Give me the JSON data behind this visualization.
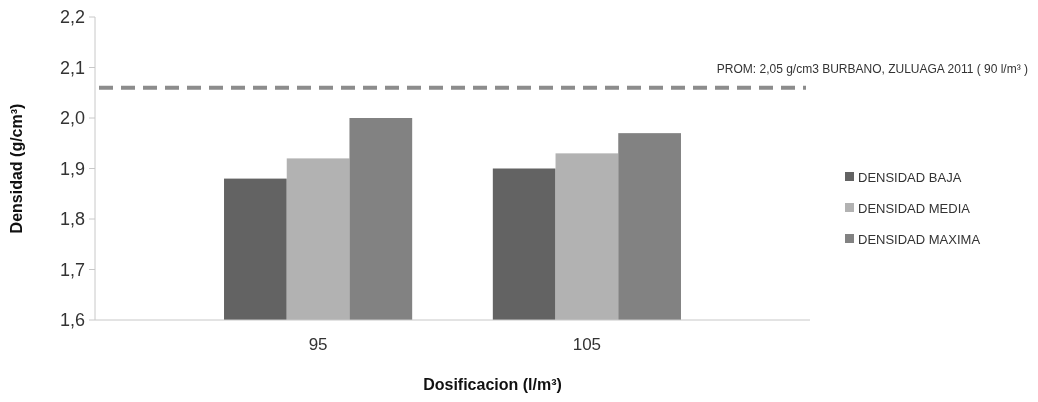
{
  "chart_data": {
    "type": "bar",
    "xlabel": "Dosificacion (l/m³)",
    "ylabel": "Densidad (g/cm³)",
    "categories": [
      "95",
      "105"
    ],
    "series": [
      {
        "name": "DENSIDAD BAJA",
        "color": "#636363",
        "values": [
          1.88,
          1.9
        ]
      },
      {
        "name": "DENSIDAD MEDIA",
        "color": "#b2b2b2",
        "values": [
          1.92,
          1.93
        ]
      },
      {
        "name": "DENSIDAD MAXIMA",
        "color": "#828282",
        "values": [
          2.0,
          1.97
        ]
      }
    ],
    "ylim": [
      1.6,
      2.2
    ],
    "yticks": [
      {
        "value": 1.6,
        "label": "1,6"
      },
      {
        "value": 1.7,
        "label": "1,7"
      },
      {
        "value": 1.8,
        "label": "1,8"
      },
      {
        "value": 1.9,
        "label": "1,9"
      },
      {
        "value": 2.0,
        "label": "2,0"
      },
      {
        "value": 2.1,
        "label": "2,1"
      },
      {
        "value": 2.2,
        "label": "2,2"
      }
    ],
    "ref_lines": [
      {
        "axis": "y",
        "value": 2.06,
        "color": "#8c8c8c",
        "line_style": "dashed"
      }
    ],
    "annotations": [
      "PROM: 2,05 g/cm3  BURBANO, ZULUAGA  2011 ( 90 l/m³ )"
    ],
    "grid": false,
    "legend": "right"
  }
}
